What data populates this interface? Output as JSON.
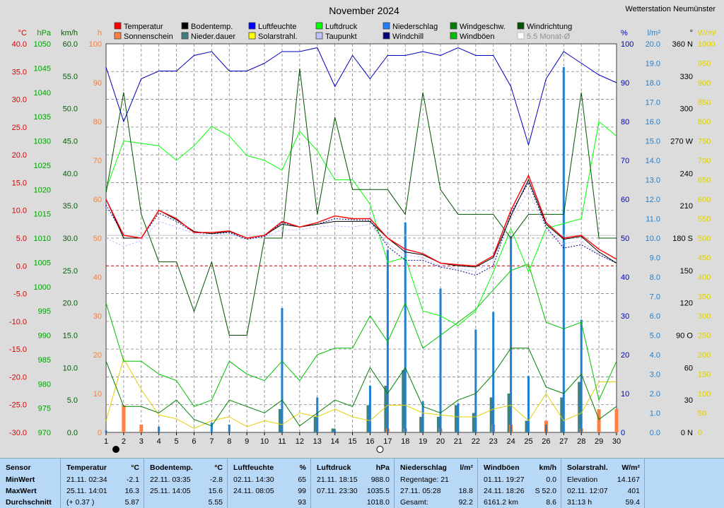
{
  "station": "Wetterstation Neumünster",
  "chart_data": {
    "type": "line",
    "title": "November 2024",
    "x": [
      1,
      2,
      3,
      4,
      5,
      6,
      7,
      8,
      9,
      10,
      11,
      12,
      13,
      14,
      15,
      16,
      17,
      18,
      19,
      20,
      21,
      22,
      23,
      24,
      25,
      26,
      27,
      28,
      29,
      30
    ],
    "axes": {
      "temp_c": {
        "label": "°C",
        "min": -30,
        "max": 40,
        "step": 5,
        "color": "#e00000"
      },
      "pressure_hpa": {
        "label": "hPa",
        "min": 970,
        "max": 1050,
        "step": 5,
        "color": "#00a000"
      },
      "wind_kmh": {
        "label": "km/h",
        "min": 0,
        "max": 60,
        "step": 5,
        "color": "#006400"
      },
      "sun_h": {
        "label": "h",
        "min": 0,
        "max": 100,
        "step": 10,
        "color": "#f08040"
      },
      "humidity_pct": {
        "label": "%",
        "min": 0,
        "max": 100,
        "step": 10,
        "color": "#0000c0"
      },
      "precip_lm2": {
        "label": "l/m²",
        "min": 0,
        "max": 20,
        "step": 1,
        "color": "#2080d0"
      },
      "wind_dir_deg": {
        "label": "°",
        "min": 0,
        "max": 360,
        "step": 30,
        "ticks": [
          "0 N",
          "30",
          "60",
          "90 O",
          "120",
          "150",
          "180 S",
          "210",
          "240",
          "270 W",
          "300",
          "330",
          "360 N"
        ]
      },
      "solar_wm2": {
        "label": "W/m²",
        "min": 0,
        "max": 1000,
        "step": 50,
        "color": "#e0d000"
      }
    },
    "legend": [
      {
        "name": "Temperatur",
        "color": "#ff0000"
      },
      {
        "name": "Sonnenschein",
        "color": "#ff8040"
      },
      {
        "name": "Bodentemp.",
        "color": "#000000"
      },
      {
        "name": "Nieder.dauer",
        "color": "#408080"
      },
      {
        "name": "Luftfeuchte",
        "color": "#0000ff"
      },
      {
        "name": "Solarstrahl.",
        "color": "#ffff00"
      },
      {
        "name": "Luftdruck",
        "color": "#00ff00"
      },
      {
        "name": "Taupunkt",
        "color": "#c0c0ff"
      },
      {
        "name": "Niederschlag",
        "color": "#2080ff"
      },
      {
        "name": "Windchill",
        "color": "#000080"
      },
      {
        "name": "Windgeschw.",
        "color": "#008000"
      },
      {
        "name": "Windböen",
        "color": "#00c000"
      },
      {
        "name": "Windrichtung",
        "color": "#005000"
      },
      {
        "name": "5.5 Monat-Ø",
        "color": "#c0c0c0"
      }
    ],
    "series": [
      {
        "name": "Temperatur",
        "axis": "temp_c",
        "color": "#ff0000",
        "values": [
          12.0,
          5.5,
          5.0,
          10.0,
          8.5,
          6.0,
          6.0,
          6.3,
          5.0,
          5.5,
          8.0,
          7.0,
          7.8,
          9.0,
          8.5,
          8.5,
          5.0,
          3.0,
          2.2,
          0.5,
          0.2,
          0.0,
          1.8,
          10.0,
          16.3,
          7.8,
          5.0,
          5.5,
          3.0,
          1.2
        ]
      },
      {
        "name": "Bodentemp.",
        "axis": "temp_c",
        "color": "#000000",
        "values": [
          12.0,
          5.0,
          5.0,
          10.0,
          8.3,
          6.2,
          5.8,
          6.2,
          5.0,
          5.5,
          7.5,
          7.0,
          7.5,
          8.0,
          8.0,
          8.0,
          5.0,
          2.5,
          2.0,
          0.5,
          0.0,
          -0.2,
          1.5,
          9.0,
          15.5,
          7.5,
          4.8,
          5.3,
          2.5,
          0.5
        ]
      },
      {
        "name": "Taupunkt",
        "axis": "temp_c",
        "color": "#c0c0ff",
        "values": [
          5.0,
          3.5,
          4.5,
          8.0,
          7.0,
          5.8,
          5.5,
          5.8,
          4.8,
          5.2,
          6.5,
          6.5,
          7.0,
          7.2,
          7.0,
          7.5,
          4.0,
          2.0,
          1.5,
          0.0,
          -0.5,
          -1.0,
          1.0,
          8.5,
          13.5,
          6.5,
          4.0,
          4.5,
          2.0,
          0.5
        ]
      },
      {
        "name": "Windchill",
        "axis": "temp_c",
        "color": "#000080",
        "values": [
          11.0,
          5.5,
          5.0,
          9.5,
          8.0,
          6.0,
          5.8,
          6.0,
          4.8,
          5.3,
          7.8,
          7.0,
          7.5,
          8.5,
          8.3,
          8.2,
          3.5,
          1.0,
          1.0,
          -0.2,
          -0.8,
          -1.7,
          0.0,
          9.5,
          15.0,
          7.0,
          3.2,
          3.8,
          2.0,
          0.5
        ]
      },
      {
        "name": "Luftfeuchte",
        "axis": "humidity_pct",
        "color": "#0000c0",
        "values": [
          94,
          80,
          91,
          93,
          93,
          97,
          98,
          93,
          93,
          95,
          98,
          98,
          99,
          89,
          97,
          91,
          97,
          97,
          98,
          97,
          99,
          97,
          97,
          89,
          74,
          91,
          98,
          95,
          92,
          90
        ]
      },
      {
        "name": "Luftdruck",
        "axis": "pressure_hpa",
        "color": "#00ff00",
        "values": [
          1020,
          1030,
          1029.5,
          1029,
          1026,
          1029,
          1033,
          1031,
          1027,
          1026,
          1024,
          1032,
          1028,
          1022,
          1022,
          1017,
          1005,
          1006,
          995,
          994,
          992,
          995,
          1003,
          1012,
          1003,
          1012,
          1013,
          1014,
          1034,
          1031
        ]
      },
      {
        "name": "Windgeschw.",
        "axis": "wind_kmh",
        "color": "#008000",
        "values": [
          11,
          4,
          4,
          3,
          5,
          2,
          1,
          5,
          4,
          3,
          5,
          1,
          3,
          5,
          4,
          10,
          6,
          10,
          4,
          3,
          5,
          6,
          9,
          13,
          13,
          7,
          6,
          9,
          2,
          4
        ]
      },
      {
        "name": "Windböen",
        "axis": "wind_kmh",
        "color": "#00c000",
        "values": [
          20,
          11,
          11,
          9,
          8,
          4,
          5,
          11,
          9,
          8,
          11,
          8,
          12,
          13,
          13,
          18,
          14,
          20,
          13,
          15,
          17,
          19,
          22,
          25,
          26,
          17,
          16,
          17,
          5,
          11
        ]
      },
      {
        "name": "Windrichtung",
        "axis": "wind_dir_deg",
        "color": "#005000",
        "values": [
          222,
          315,
          202,
          158,
          158,
          112,
          158,
          90,
          90,
          180,
          180,
          337,
          202,
          292,
          225,
          225,
          225,
          202,
          315,
          225,
          202,
          202,
          202,
          180,
          202,
          202,
          202,
          315,
          180,
          180
        ]
      },
      {
        "name": "Solarstrahl.",
        "axis": "solar_wm2",
        "color": "#e0d000",
        "values": [
          30,
          190,
          110,
          45,
          35,
          10,
          30,
          40,
          15,
          30,
          20,
          50,
          40,
          60,
          40,
          30,
          70,
          70,
          50,
          45,
          40,
          40,
          60,
          70,
          30,
          100,
          30,
          50,
          130,
          130
        ]
      },
      {
        "name": "5.5 Monat-Ø",
        "axis": "temp_c",
        "color": "#c0c0c0",
        "values": [
          5.5,
          5.5,
          5.5,
          5.5,
          5.5,
          5.5,
          5.5,
          5.5,
          5.5,
          5.5,
          5.5,
          5.5,
          5.5,
          5.5,
          5.5,
          5.5,
          5.5,
          5.5,
          5.5,
          5.5,
          5.5,
          5.5,
          5.5,
          5.5,
          5.5,
          5.5,
          5.5,
          5.5,
          5.5,
          5.5
        ]
      }
    ],
    "bars": [
      {
        "name": "Niederschlag",
        "axis": "precip_lm2",
        "color": "#2080d0",
        "values": [
          0.1,
          0.0,
          0.0,
          0.3,
          0.0,
          0.0,
          0.5,
          0.4,
          0.0,
          0.0,
          6.4,
          0.0,
          1.8,
          0.1,
          0.0,
          2.4,
          9.4,
          10.8,
          1.6,
          7.4,
          1.5,
          5.3,
          6.2,
          10.1,
          2.9,
          0.4,
          18.8,
          5.8,
          0.0,
          0.0
        ]
      },
      {
        "name": "Nieder.dauer",
        "axis": "sun_h",
        "color": "#408080",
        "values": [
          0,
          0,
          0,
          0,
          0,
          0,
          0,
          0,
          0,
          0,
          6,
          0,
          4,
          1,
          0,
          7,
          12,
          16,
          4,
          4,
          7,
          5,
          9,
          10,
          3,
          0,
          9,
          13,
          0,
          0
        ]
      },
      {
        "name": "Sonnenschein",
        "axis": "sun_h",
        "color": "#ff8040",
        "values": [
          0,
          7,
          2,
          0,
          0,
          0,
          0,
          0,
          0,
          0,
          0,
          0,
          0,
          0,
          0,
          0,
          1,
          1,
          0,
          1,
          0,
          0,
          2,
          2,
          0,
          3,
          0,
          1,
          6,
          6
        ]
      }
    ],
    "moon_phases": [
      {
        "day": 1,
        "phase": "Neumond"
      },
      {
        "day": 16,
        "phase": "Vollmond"
      }
    ]
  },
  "stats": [
    {
      "title": "Sensor",
      "rows": [
        {
          "label": "MinWert"
        },
        {
          "label": "MaxWert"
        },
        {
          "label": "Durchschnitt"
        }
      ]
    },
    {
      "title": "Temperatur",
      "unit": "°C",
      "rows": [
        {
          "time": "21.11.  02:34",
          "value": "-2.1"
        },
        {
          "time": "25.11.  14:01",
          "value": "16.3"
        },
        {
          "time": "(+ 0.37 )",
          "value": "5.87"
        }
      ]
    },
    {
      "title": "Bodentemp.",
      "unit": "°C",
      "rows": [
        {
          "time": "22.11.  03:35",
          "value": "-2.8"
        },
        {
          "time": "25.11.  14:05",
          "value": "15.6"
        },
        {
          "time": "",
          "value": "5.55"
        }
      ]
    },
    {
      "title": "Luftfeuchte",
      "unit": "%",
      "rows": [
        {
          "time": "02.11.  14:30",
          "value": "65"
        },
        {
          "time": "24.11.  08:05",
          "value": "99"
        },
        {
          "time": "",
          "value": "93"
        }
      ]
    },
    {
      "title": "Luftdruck",
      "unit": "hPa",
      "rows": [
        {
          "time": "21.11.  18:15",
          "value": "988.0"
        },
        {
          "time": "07.11.  23:30",
          "value": "1035.5"
        },
        {
          "time": "",
          "value": "1018.0"
        }
      ]
    },
    {
      "title": "Niederschlag",
      "unit": "l/m²",
      "rows": [
        {
          "time": "Regentage: 21",
          "value": ""
        },
        {
          "time": "27.11.  05:28",
          "value": "18.8"
        },
        {
          "time": "Gesamt:",
          "value": "92.2"
        }
      ]
    },
    {
      "title": "Windböen",
      "unit": "km/h",
      "rows": [
        {
          "time": "01.11.  19:27",
          "value": "0.0"
        },
        {
          "time": "24.11.  18:26",
          "value": "S 52.0"
        },
        {
          "time": "6161.2 km",
          "value": "8.6"
        }
      ]
    },
    {
      "title": "Solarstrahl.",
      "unit": "W/m²",
      "rows": [
        {
          "time": "Elevation",
          "value": "14.167"
        },
        {
          "time": "02.11.  12:07",
          "value": "401"
        },
        {
          "time": "31:13 h",
          "value": "59.4"
        }
      ]
    }
  ]
}
